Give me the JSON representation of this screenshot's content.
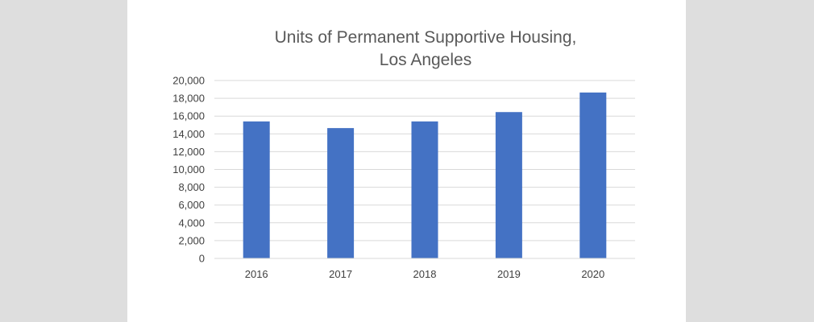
{
  "chart_data": {
    "type": "bar",
    "title": "Units of Permanent Supportive Housing,",
    "subtitle": "Los Angeles",
    "categories": [
      "2016",
      "2017",
      "2018",
      "2019",
      "2020"
    ],
    "series": [
      {
        "values": [
          15400,
          14650,
          15400,
          16450,
          18650
        ],
        "color": "#4472c4"
      }
    ],
    "xlabel": "",
    "ylabel": "",
    "ylim": [
      0,
      20000
    ],
    "y_ticks": [
      0,
      2000,
      4000,
      6000,
      8000,
      10000,
      12000,
      14000,
      16000,
      18000,
      20000
    ],
    "y_tick_labels": [
      "0",
      "2,000",
      "4,000",
      "6,000",
      "8,000",
      "10,000",
      "12,000",
      "14,000",
      "16,000",
      "18,000",
      "20,000"
    ],
    "grid": true,
    "legend": "none",
    "gridline_color": "#d9d9d9",
    "background_color": "#ffffff"
  }
}
